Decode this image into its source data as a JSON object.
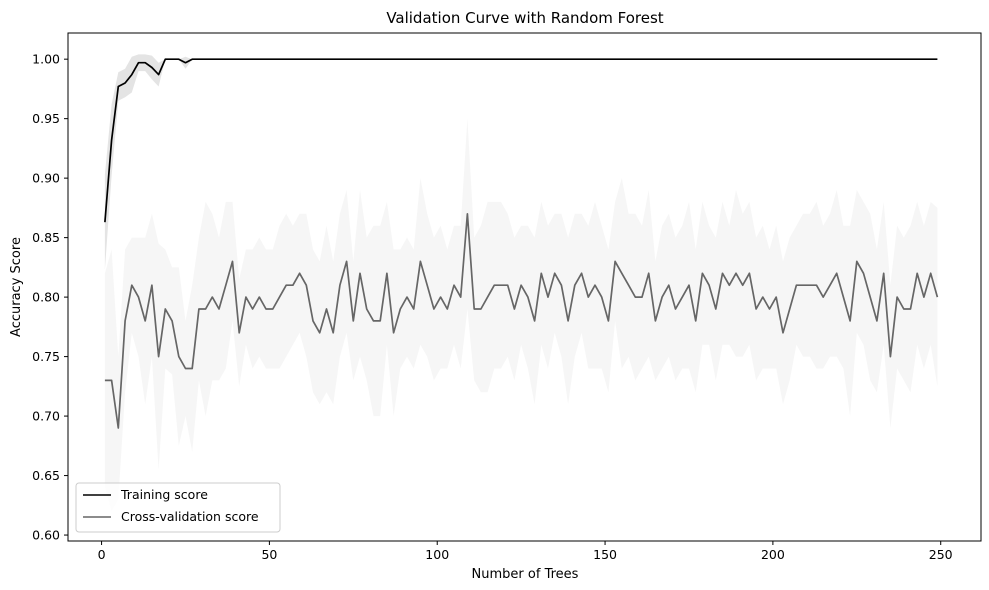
{
  "chart_data": {
    "type": "line",
    "title": "Validation Curve with Random Forest",
    "xlabel": "Number of Trees",
    "ylabel": "Accuracy Score",
    "xlim": [
      -10,
      262
    ],
    "ylim": [
      0.595,
      1.022
    ],
    "xticks": [
      0,
      50,
      100,
      150,
      200,
      250
    ],
    "yticks": [
      0.6,
      0.65,
      0.7,
      0.75,
      0.8,
      0.85,
      0.9,
      0.95,
      1.0
    ],
    "x": [
      1,
      3,
      5,
      7,
      9,
      11,
      13,
      15,
      17,
      19,
      21,
      23,
      25,
      27,
      29,
      31,
      33,
      35,
      37,
      39,
      41,
      43,
      45,
      47,
      49,
      51,
      53,
      55,
      57,
      59,
      61,
      63,
      65,
      67,
      69,
      71,
      73,
      75,
      77,
      79,
      81,
      83,
      85,
      87,
      89,
      91,
      93,
      95,
      97,
      99,
      101,
      103,
      105,
      107,
      109,
      111,
      113,
      115,
      117,
      119,
      121,
      123,
      125,
      127,
      129,
      131,
      133,
      135,
      137,
      139,
      141,
      143,
      145,
      147,
      149,
      151,
      153,
      155,
      157,
      159,
      161,
      163,
      165,
      167,
      169,
      171,
      173,
      175,
      177,
      179,
      181,
      183,
      185,
      187,
      189,
      191,
      193,
      195,
      197,
      199,
      201,
      203,
      205,
      207,
      209,
      211,
      213,
      215,
      217,
      219,
      221,
      223,
      225,
      227,
      229,
      231,
      233,
      235,
      237,
      239,
      241,
      243,
      245,
      247,
      249
    ],
    "legend_position": "lower left",
    "grid": false,
    "series": [
      {
        "name": "Training score",
        "color": "#000000",
        "band_color": "#d9d9d9",
        "values": [
          0.863,
          0.932,
          0.977,
          0.98,
          0.987,
          0.997,
          0.997,
          0.993,
          0.987,
          1.0,
          1.0,
          1.0,
          0.997,
          1.0,
          1.0,
          1.0,
          1.0,
          1.0,
          1.0,
          1.0,
          1.0,
          1.0,
          1.0,
          1.0,
          1.0,
          1.0,
          1.0,
          1.0,
          1.0,
          1.0,
          1.0,
          1.0,
          1.0,
          1.0,
          1.0,
          1.0,
          1.0,
          1.0,
          1.0,
          1.0,
          1.0,
          1.0,
          1.0,
          1.0,
          1.0,
          1.0,
          1.0,
          1.0,
          1.0,
          1.0,
          1.0,
          1.0,
          1.0,
          1.0,
          1.0,
          1.0,
          1.0,
          1.0,
          1.0,
          1.0,
          1.0,
          1.0,
          1.0,
          1.0,
          1.0,
          1.0,
          1.0,
          1.0,
          1.0,
          1.0,
          1.0,
          1.0,
          1.0,
          1.0,
          1.0,
          1.0,
          1.0,
          1.0,
          1.0,
          1.0,
          1.0,
          1.0,
          1.0,
          1.0,
          1.0,
          1.0,
          1.0,
          1.0,
          1.0,
          1.0,
          1.0,
          1.0,
          1.0,
          1.0,
          1.0,
          1.0,
          1.0,
          1.0,
          1.0,
          1.0,
          1.0,
          1.0,
          1.0,
          1.0,
          1.0,
          1.0,
          1.0,
          1.0,
          1.0,
          1.0,
          1.0,
          1.0,
          1.0,
          1.0,
          1.0,
          1.0,
          1.0,
          1.0,
          1.0,
          1.0,
          1.0,
          1.0,
          1.0,
          1.0,
          1.0
        ],
        "std": [
          0.04,
          0.03,
          0.012,
          0.012,
          0.015,
          0.007,
          0.007,
          0.01,
          0.01,
          0,
          0,
          0,
          0.005,
          0,
          0,
          0,
          0,
          0,
          0,
          0,
          0,
          0,
          0,
          0,
          0,
          0,
          0,
          0,
          0,
          0,
          0,
          0,
          0,
          0,
          0,
          0,
          0,
          0,
          0,
          0,
          0,
          0,
          0,
          0,
          0,
          0,
          0,
          0,
          0,
          0,
          0,
          0,
          0,
          0,
          0,
          0,
          0,
          0,
          0,
          0,
          0,
          0,
          0,
          0,
          0,
          0,
          0,
          0,
          0,
          0,
          0,
          0,
          0,
          0,
          0,
          0,
          0,
          0,
          0,
          0,
          0,
          0,
          0,
          0,
          0,
          0,
          0,
          0,
          0,
          0,
          0,
          0,
          0,
          0,
          0,
          0,
          0,
          0,
          0,
          0,
          0,
          0,
          0,
          0,
          0,
          0,
          0,
          0,
          0,
          0,
          0,
          0,
          0,
          0,
          0,
          0,
          0,
          0,
          0,
          0,
          0,
          0,
          0,
          0,
          0
        ]
      },
      {
        "name": "Cross-validation score",
        "color": "#666666",
        "band_color": "#ebebeb",
        "values": [
          0.73,
          0.73,
          0.69,
          0.78,
          0.81,
          0.8,
          0.78,
          0.81,
          0.75,
          0.79,
          0.78,
          0.75,
          0.74,
          0.74,
          0.79,
          0.79,
          0.8,
          0.79,
          0.81,
          0.83,
          0.77,
          0.8,
          0.79,
          0.8,
          0.79,
          0.79,
          0.8,
          0.81,
          0.81,
          0.82,
          0.81,
          0.78,
          0.77,
          0.79,
          0.77,
          0.81,
          0.83,
          0.78,
          0.82,
          0.79,
          0.78,
          0.78,
          0.82,
          0.77,
          0.79,
          0.8,
          0.79,
          0.83,
          0.81,
          0.79,
          0.8,
          0.79,
          0.81,
          0.8,
          0.87,
          0.79,
          0.79,
          0.8,
          0.81,
          0.81,
          0.81,
          0.79,
          0.81,
          0.8,
          0.78,
          0.82,
          0.8,
          0.82,
          0.81,
          0.78,
          0.81,
          0.82,
          0.8,
          0.81,
          0.8,
          0.78,
          0.83,
          0.82,
          0.81,
          0.8,
          0.8,
          0.82,
          0.78,
          0.8,
          0.81,
          0.79,
          0.8,
          0.81,
          0.78,
          0.82,
          0.81,
          0.79,
          0.82,
          0.81,
          0.82,
          0.81,
          0.82,
          0.79,
          0.8,
          0.79,
          0.8,
          0.77,
          0.79,
          0.81,
          0.81,
          0.81,
          0.81,
          0.8,
          0.81,
          0.82,
          0.8,
          0.78,
          0.83,
          0.82,
          0.8,
          0.78,
          0.82,
          0.75,
          0.8,
          0.79,
          0.79,
          0.82,
          0.8,
          0.82,
          0.8
        ],
        "std": [
          0.09,
          0.11,
          0.06,
          0.06,
          0.04,
          0.05,
          0.07,
          0.06,
          0.095,
          0.05,
          0.045,
          0.075,
          0.04,
          0.07,
          0.06,
          0.09,
          0.07,
          0.06,
          0.07,
          0.05,
          0.045,
          0.04,
          0.05,
          0.05,
          0.05,
          0.05,
          0.06,
          0.06,
          0.05,
          0.05,
          0.06,
          0.06,
          0.06,
          0.07,
          0.06,
          0.06,
          0.06,
          0.05,
          0.07,
          0.06,
          0.08,
          0.08,
          0.06,
          0.07,
          0.05,
          0.05,
          0.05,
          0.07,
          0.06,
          0.06,
          0.06,
          0.05,
          0.05,
          0.06,
          0.08,
          0.06,
          0.07,
          0.08,
          0.07,
          0.07,
          0.06,
          0.06,
          0.05,
          0.06,
          0.07,
          0.06,
          0.06,
          0.05,
          0.06,
          0.07,
          0.06,
          0.05,
          0.06,
          0.07,
          0.06,
          0.06,
          0.05,
          0.08,
          0.06,
          0.07,
          0.06,
          0.07,
          0.05,
          0.06,
          0.06,
          0.06,
          0.06,
          0.07,
          0.06,
          0.06,
          0.05,
          0.06,
          0.06,
          0.05,
          0.07,
          0.06,
          0.06,
          0.06,
          0.06,
          0.05,
          0.06,
          0.06,
          0.06,
          0.05,
          0.06,
          0.06,
          0.07,
          0.06,
          0.06,
          0.07,
          0.06,
          0.08,
          0.06,
          0.06,
          0.07,
          0.06,
          0.06,
          0.06,
          0.06,
          0.06,
          0.07,
          0.06,
          0.06,
          0.06,
          0.075
        ]
      }
    ]
  }
}
